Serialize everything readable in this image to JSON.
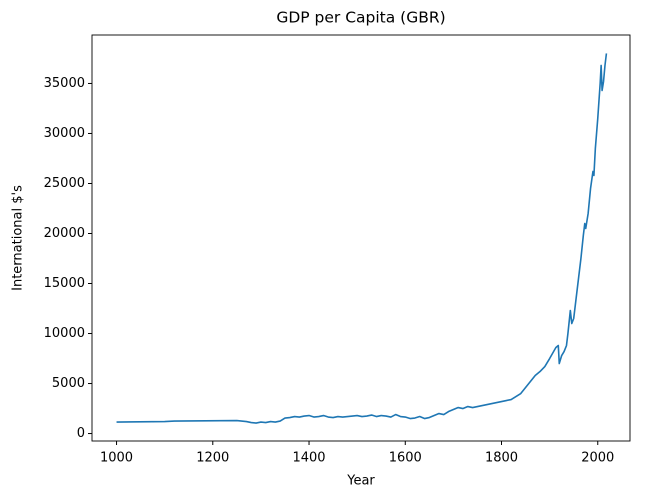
{
  "chart_data": {
    "type": "line",
    "title": "GDP per Capita (GBR)",
    "xlabel": "Year",
    "ylabel": "International $'s",
    "x": [
      1000,
      1100,
      1120,
      1250,
      1270,
      1280,
      1290,
      1300,
      1310,
      1320,
      1330,
      1340,
      1350,
      1360,
      1370,
      1380,
      1390,
      1400,
      1410,
      1420,
      1430,
      1440,
      1450,
      1460,
      1470,
      1480,
      1490,
      1500,
      1510,
      1520,
      1530,
      1540,
      1550,
      1560,
      1570,
      1580,
      1590,
      1600,
      1610,
      1620,
      1630,
      1640,
      1650,
      1660,
      1670,
      1680,
      1690,
      1700,
      1710,
      1720,
      1730,
      1740,
      1750,
      1760,
      1770,
      1780,
      1790,
      1800,
      1810,
      1820,
      1830,
      1840,
      1850,
      1860,
      1870,
      1880,
      1890,
      1900,
      1913,
      1918,
      1920,
      1925,
      1930,
      1935,
      1938,
      1943,
      1946,
      1950,
      1955,
      1960,
      1965,
      1970,
      1973,
      1975,
      1980,
      1985,
      1990,
      1992,
      1995,
      2000,
      2005,
      2007,
      2009,
      2012,
      2015,
      2018
    ],
    "series": [
      {
        "name": "GDP per Capita",
        "color": "#1f77b4",
        "values": [
          1150,
          1200,
          1250,
          1300,
          1200,
          1100,
          1050,
          1150,
          1100,
          1200,
          1150,
          1250,
          1550,
          1600,
          1700,
          1650,
          1750,
          1800,
          1650,
          1700,
          1800,
          1650,
          1600,
          1700,
          1650,
          1700,
          1750,
          1800,
          1700,
          1750,
          1850,
          1700,
          1800,
          1750,
          1650,
          1900,
          1700,
          1650,
          1500,
          1550,
          1700,
          1500,
          1600,
          1800,
          2000,
          1900,
          2200,
          2400,
          2600,
          2500,
          2700,
          2600,
          2700,
          2800,
          2900,
          3000,
          3100,
          3200,
          3300,
          3400,
          3700,
          4000,
          4600,
          5200,
          5800,
          6200,
          6700,
          7500,
          8600,
          8800,
          7000,
          7800,
          8200,
          8800,
          10000,
          12300,
          11000,
          11500,
          13500,
          15500,
          17500,
          19800,
          21000,
          20500,
          22000,
          24500,
          26200,
          25800,
          28500,
          31500,
          35000,
          36800,
          34300,
          35200,
          36800,
          38000
        ]
      }
    ],
    "xlim": [
      949,
      2067
    ],
    "ylim": [
      -745,
      39845
    ],
    "xticks": [
      1000,
      1200,
      1400,
      1600,
      1800,
      2000
    ],
    "yticks": [
      0,
      5000,
      10000,
      15000,
      20000,
      25000,
      30000,
      35000
    ]
  }
}
